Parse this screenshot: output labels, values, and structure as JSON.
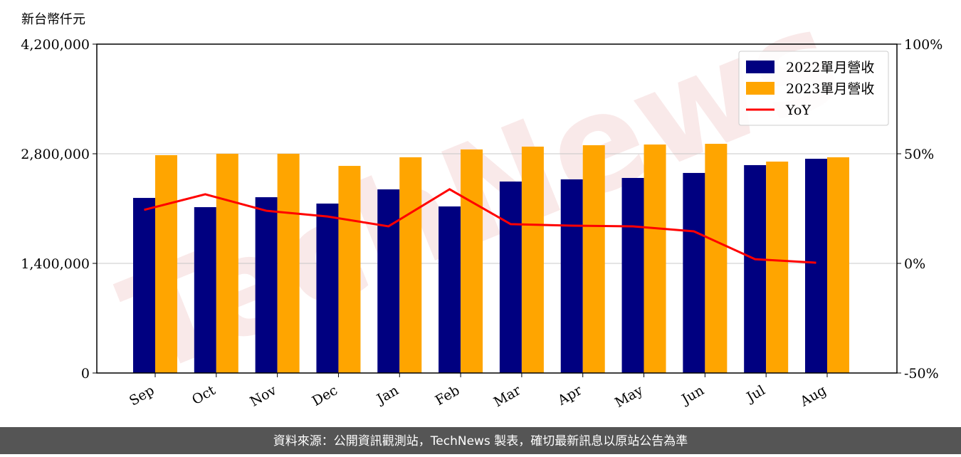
{
  "chart_data": {
    "type": "bar",
    "y_label": "新台幣仟元",
    "watermark": "TechNews",
    "footer": "資料來源：公開資訊觀測站，TechNews 製表，確切最新訊息以原站公告為準",
    "categories": [
      "Sep",
      "Oct",
      "Nov",
      "Dec",
      "Jan",
      "Feb",
      "Mar",
      "Apr",
      "May",
      "Jun",
      "Jul",
      "Aug"
    ],
    "series": [
      {
        "name": "2022單月營收",
        "color": "#000080",
        "type": "bar",
        "values": [
          2236000,
          2118000,
          2245000,
          2164000,
          2345000,
          2127000,
          2445000,
          2473000,
          2491000,
          2555000,
          2655000,
          2736000
        ]
      },
      {
        "name": "2023單月營收",
        "color": "#ffa500",
        "type": "bar",
        "values": [
          2782000,
          2800000,
          2800000,
          2645000,
          2755000,
          2855000,
          2891000,
          2909000,
          2918000,
          2927000,
          2700000,
          2755000
        ]
      },
      {
        "name": "YoY",
        "color": "#ff0000",
        "type": "line",
        "axis": "y2",
        "values": [
          24.4,
          31.5,
          24.0,
          21.4,
          16.9,
          33.8,
          17.9,
          17.2,
          16.9,
          14.6,
          1.9,
          0.3
        ]
      }
    ],
    "ylim": [
      0,
      4200000
    ],
    "yticks": [
      0,
      {
        "value": 1400000,
        "label": "1,400,000"
      },
      {
        "value": 2800000,
        "label": "2,800,000"
      },
      {
        "value": 4200000,
        "label": "4,200,000"
      }
    ],
    "y2lim": [
      -50,
      100
    ],
    "y2ticks": [
      {
        "value": -50,
        "label": "-50%"
      },
      {
        "value": 0,
        "label": "0%"
      },
      {
        "value": 50,
        "label": "50%"
      },
      {
        "value": 100,
        "label": "100%"
      }
    ],
    "grid": true,
    "legend": "upper right"
  }
}
